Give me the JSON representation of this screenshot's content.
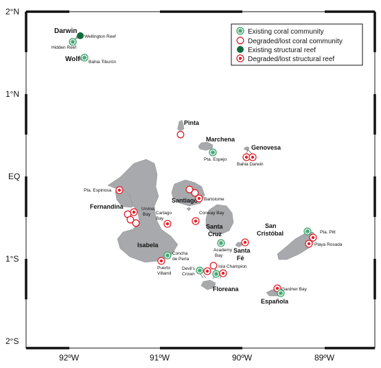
{
  "axes": {
    "y_labels": [
      "2°N",
      "1°N",
      "EQ",
      "1°S",
      "2°S"
    ],
    "x_labels": [
      "92ºW",
      "91ºW",
      "90ºW",
      "89ºW"
    ]
  },
  "legend": {
    "items": [
      {
        "label": "Existing coral community",
        "symbol": "existing-coral"
      },
      {
        "label": "Degraded/lost coral community",
        "symbol": "degraded-coral"
      },
      {
        "label": "Existing structural reef",
        "symbol": "existing-reef"
      },
      {
        "label": "Degraded/lost structural reef",
        "symbol": "degraded-reef"
      }
    ]
  },
  "islands": {
    "darwin": "Darwin",
    "wolf": "Wolf",
    "pinta": "Pinta",
    "marchena": "Marchena",
    "genovesa": "Genovesa",
    "fernandina": "Fernandina",
    "santiago": "Santiago",
    "santa_cruz": "Santa Cruz",
    "isabela": "Isabela",
    "santa_fe": "Santa Fé",
    "san_cristobal": "San Cristóbal",
    "floreana": "Floreana",
    "espanola": "Española"
  },
  "sites": {
    "wellington_reef": "Wellington Reef",
    "hidden_reef": "Hidden Reef",
    "bahia_tiburon": "Bahia Tiburón",
    "pta_espejo": "Pta. Espejo",
    "bahia_darwin": "Bahia Darwin",
    "pta_espinosa": "Pta. Espinosa",
    "bartolome": "Bartolome",
    "urvina_bay": "Urvina Bay",
    "cartago_bay": "Cartago Bay",
    "conway_bay": "Conway Bay",
    "academy_bay": "Academy Bay",
    "concha_de_perla": "Concha de Perla",
    "puerto_villamil": "Puerto Villamil",
    "devils_crown": "Devil's Crown",
    "isla_champion": "Isla Champion",
    "pta_pitt": "Pta. Pitt",
    "playa_rosada": "Playa Rosada",
    "gardner_bay": "Gardner Bay"
  },
  "colors": {
    "land": "#a7a9ac",
    "existing_coral": "#3aa06a",
    "existing_reef": "#0f6b3a",
    "degraded": "#e0202a"
  }
}
